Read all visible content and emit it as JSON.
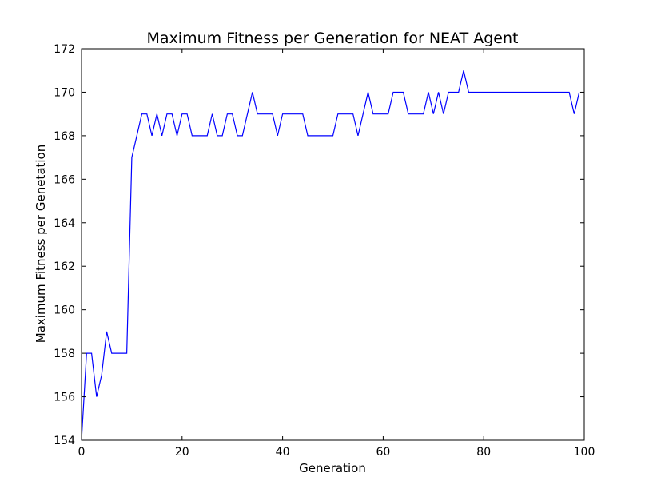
{
  "chart_data": {
    "type": "line",
    "title": "Maximum Fitness per Generation for NEAT Agent",
    "xlabel": "Generation",
    "ylabel": "Maximum Fitness per Genetation",
    "xlim": [
      0,
      100
    ],
    "ylim": [
      154,
      172
    ],
    "xticks": [
      0,
      20,
      40,
      60,
      80,
      100
    ],
    "yticks": [
      154,
      156,
      158,
      160,
      162,
      164,
      166,
      168,
      170,
      172
    ],
    "grid": false,
    "legend": "none",
    "series": [
      {
        "color": "#0000ff",
        "x": [
          0,
          1,
          2,
          3,
          4,
          5,
          6,
          7,
          8,
          9,
          10,
          11,
          12,
          13,
          14,
          15,
          16,
          17,
          18,
          19,
          20,
          21,
          22,
          23,
          24,
          25,
          26,
          27,
          28,
          29,
          30,
          31,
          32,
          33,
          34,
          35,
          36,
          37,
          38,
          39,
          40,
          41,
          42,
          43,
          44,
          45,
          46,
          47,
          48,
          49,
          50,
          51,
          52,
          53,
          54,
          55,
          56,
          57,
          58,
          59,
          60,
          61,
          62,
          63,
          64,
          65,
          66,
          67,
          68,
          69,
          70,
          71,
          72,
          73,
          74,
          75,
          76,
          77,
          78,
          79,
          80,
          81,
          82,
          83,
          84,
          85,
          86,
          87,
          88,
          89,
          90,
          91,
          92,
          93,
          94,
          95,
          96,
          97,
          98,
          99
        ],
        "y": [
          154,
          158,
          158,
          156,
          157,
          159,
          158,
          158,
          158,
          158,
          167,
          168,
          169,
          169,
          168,
          169,
          168,
          169,
          169,
          168,
          169,
          169,
          168,
          168,
          168,
          168,
          169,
          168,
          168,
          169,
          169,
          168,
          168,
          169,
          170,
          169,
          169,
          169,
          169,
          168,
          169,
          169,
          169,
          169,
          169,
          168,
          168,
          168,
          168,
          168,
          168,
          169,
          169,
          169,
          169,
          168,
          169,
          170,
          169,
          169,
          169,
          169,
          170,
          170,
          170,
          169,
          169,
          169,
          169,
          170,
          169,
          170,
          169,
          170,
          170,
          170,
          171,
          170,
          170,
          170,
          170,
          170,
          170,
          170,
          170,
          170,
          170,
          170,
          170,
          170,
          170,
          170,
          170,
          170,
          170,
          170,
          170,
          170,
          169,
          170
        ]
      }
    ]
  }
}
